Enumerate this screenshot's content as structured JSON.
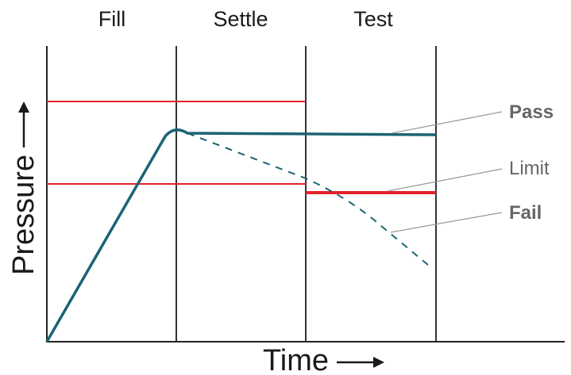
{
  "phases": [
    "Fill",
    "Settle",
    "Test"
  ],
  "axes": {
    "x_label": "Time",
    "y_label": "Pressure"
  },
  "annotations": {
    "pass": "Pass",
    "limit": "Limit",
    "fail": "Fail"
  },
  "colors": {
    "pass_line": "#1c6374",
    "fail_line": "#1c6374",
    "limit_line": "#e5212b",
    "axis": "#222222",
    "divider": "#333333",
    "leader": "#999999",
    "annotation_text": "#666666"
  }
}
